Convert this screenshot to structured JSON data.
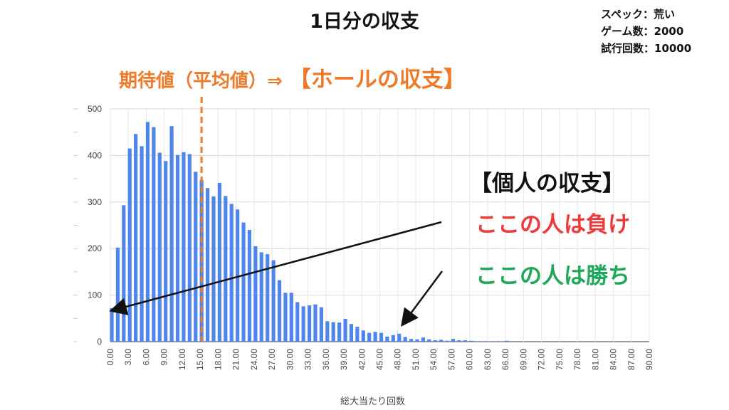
{
  "header": {
    "title": "1日分の収支",
    "specs": [
      "スペック：荒い",
      "ゲーム数：2000",
      "試行回数：10000"
    ]
  },
  "annotations": {
    "expectation_prefix": "期待値（平均値）⇒ ",
    "expectation_highlight": "【ホールの収支】",
    "individual_title": "【個人の収支】",
    "lose_text": "ここの人は負け",
    "win_text": "ここの人は勝ち"
  },
  "colors": {
    "bar": "#4f86ec",
    "mean_line": "#ee7a2a",
    "lose": "#ee3a3a",
    "win": "#1fa85a"
  },
  "chart_data": {
    "type": "bar",
    "xlabel": "総大当たり回数",
    "ylabel": "",
    "ylim": [
      0,
      500
    ],
    "yticks": [
      0,
      100,
      200,
      300,
      400,
      500
    ],
    "xlim": [
      0,
      90
    ],
    "xtick_labels": [
      "0.00",
      "3.00",
      "6.00",
      "9.00",
      "12.00",
      "15.00",
      "18.00",
      "21.00",
      "24.00",
      "27.00",
      "30.00",
      "33.00",
      "36.00",
      "39.00",
      "42.00",
      "45.00",
      "48.00",
      "51.00",
      "54.00",
      "57.00",
      "60.00",
      "63.00",
      "66.00",
      "69.00",
      "72.00",
      "75.00",
      "78.00",
      "81.00",
      "84.00",
      "87.00",
      "90.00"
    ],
    "grid": true,
    "mean_line_x": 15,
    "x": [
      0,
      1,
      2,
      3,
      4,
      5,
      6,
      7,
      8,
      9,
      10,
      11,
      12,
      13,
      14,
      15,
      16,
      17,
      18,
      19,
      20,
      21,
      22,
      23,
      24,
      25,
      26,
      27,
      28,
      29,
      30,
      31,
      32,
      33,
      34,
      35,
      36,
      37,
      38,
      39,
      40,
      41,
      42,
      43,
      44,
      45,
      46,
      47,
      48,
      49,
      50,
      51,
      52,
      53,
      54,
      55,
      56,
      57,
      58,
      59,
      60,
      61,
      62,
      63,
      64,
      65,
      66
    ],
    "values": [
      72,
      202,
      293,
      415,
      446,
      420,
      472,
      461,
      406,
      388,
      463,
      401,
      407,
      403,
      365,
      347,
      330,
      312,
      341,
      313,
      296,
      284,
      256,
      240,
      205,
      192,
      188,
      175,
      132,
      105,
      105,
      85,
      76,
      78,
      80,
      74,
      44,
      42,
      41,
      49,
      38,
      32,
      24,
      19,
      21,
      19,
      11,
      14,
      17,
      10,
      6,
      5,
      9,
      5,
      3,
      4,
      2,
      6,
      3,
      3,
      2,
      1,
      1,
      1,
      1,
      1,
      2
    ]
  }
}
